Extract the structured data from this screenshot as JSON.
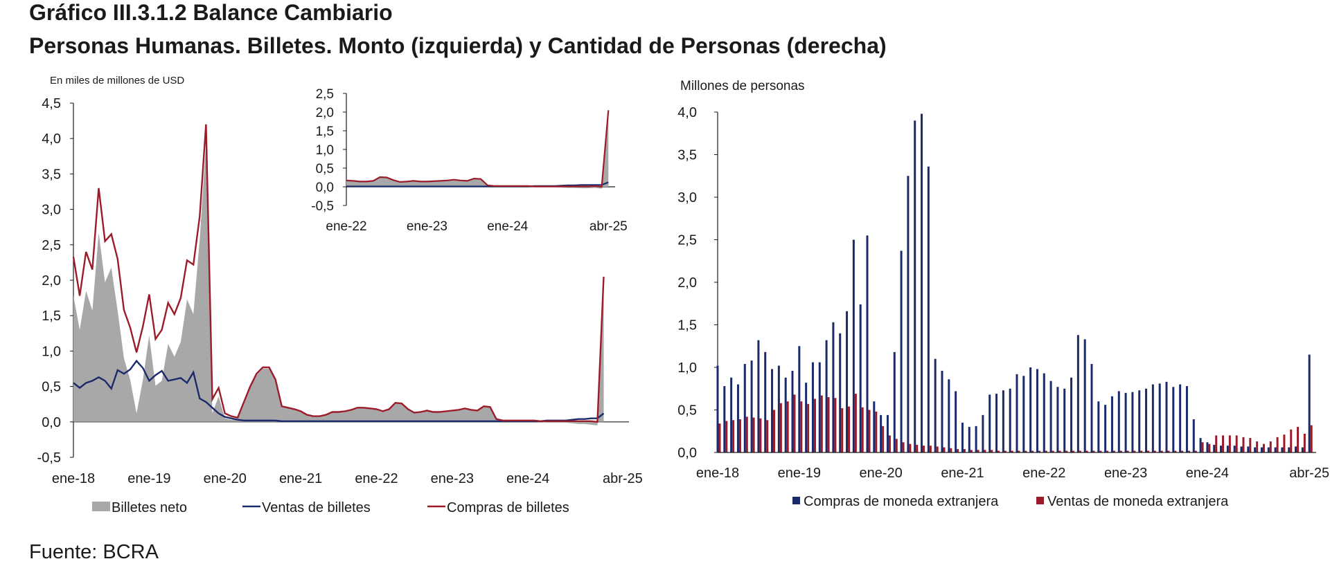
{
  "title": "Gráfico III.3.1.2 Balance Cambiario",
  "subtitle": "Personas Humanas. Billetes. Monto (izquierda) y Cantidad de Personas (derecha)",
  "source": "Fuente: BCRA",
  "colors": {
    "neto": "#a8a8a8",
    "ventas": "#1b2a6b",
    "compras": "#9b1b2a",
    "axis": "#1a1a1a"
  },
  "chart_data": [
    {
      "type": "area",
      "name": "left-main",
      "ylabel": "En miles de millones de USD",
      "ylim": [
        -0.5,
        4.5
      ],
      "yticks": [
        "-0,5",
        "0,0",
        "0,5",
        "1,0",
        "1,5",
        "2,0",
        "2,5",
        "3,0",
        "3,5",
        "4,0",
        "4,5"
      ],
      "xlim": [
        0,
        88
      ],
      "xticks": [
        {
          "x": 0,
          "label": "ene-18"
        },
        {
          "x": 12,
          "label": "ene-19"
        },
        {
          "x": 24,
          "label": "ene-20"
        },
        {
          "x": 36,
          "label": "ene-21"
        },
        {
          "x": 48,
          "label": "ene-22"
        },
        {
          "x": 60,
          "label": "ene-23"
        },
        {
          "x": 72,
          "label": "ene-24"
        },
        {
          "x": 87,
          "label": "abr-25"
        }
      ],
      "legend": [
        "Billetes neto",
        "Ventas de billetes",
        "Compras de billetes"
      ],
      "series": [
        {
          "name": "Compras de billetes",
          "values": [
            2.33,
            1.78,
            2.4,
            2.15,
            3.3,
            2.55,
            2.65,
            2.3,
            1.58,
            1.33,
            0.98,
            1.35,
            1.8,
            1.17,
            1.3,
            1.68,
            1.52,
            1.75,
            2.28,
            2.22,
            2.9,
            4.2,
            0.32,
            0.48,
            0.12,
            0.08,
            0.06,
            0.28,
            0.5,
            0.68,
            0.77,
            0.77,
            0.6,
            0.22,
            0.2,
            0.18,
            0.15,
            0.1,
            0.08,
            0.08,
            0.1,
            0.14,
            0.14,
            0.15,
            0.17,
            0.2,
            0.2,
            0.19,
            0.18,
            0.15,
            0.18,
            0.27,
            0.26,
            0.18,
            0.13,
            0.14,
            0.16,
            0.14,
            0.14,
            0.15,
            0.16,
            0.17,
            0.19,
            0.17,
            0.16,
            0.22,
            0.21,
            0.04,
            0.02,
            0.02,
            0.02,
            0.02,
            0.02,
            0.02,
            0.01,
            0.01,
            0.01,
            0.01,
            0.01,
            0.01,
            0.01,
            0.01,
            0.01,
            0.0,
            2.05
          ]
        },
        {
          "name": "Ventas de billetes",
          "values": [
            0.55,
            0.48,
            0.55,
            0.58,
            0.63,
            0.58,
            0.47,
            0.73,
            0.68,
            0.74,
            0.86,
            0.76,
            0.58,
            0.66,
            0.72,
            0.58,
            0.6,
            0.62,
            0.55,
            0.7,
            0.33,
            0.28,
            0.2,
            0.12,
            0.07,
            0.05,
            0.03,
            0.02,
            0.02,
            0.02,
            0.02,
            0.02,
            0.02,
            0.01,
            0.01,
            0.01,
            0.01,
            0.01,
            0.01,
            0.01,
            0.01,
            0.01,
            0.01,
            0.01,
            0.01,
            0.01,
            0.01,
            0.01,
            0.01,
            0.01,
            0.01,
            0.01,
            0.01,
            0.01,
            0.01,
            0.01,
            0.01,
            0.01,
            0.01,
            0.01,
            0.01,
            0.01,
            0.01,
            0.01,
            0.01,
            0.01,
            0.01,
            0.01,
            0.01,
            0.01,
            0.01,
            0.01,
            0.01,
            0.01,
            0.01,
            0.02,
            0.02,
            0.02,
            0.02,
            0.03,
            0.04,
            0.04,
            0.05,
            0.05,
            0.12
          ]
        },
        {
          "name": "Billetes neto",
          "values": [
            1.78,
            1.3,
            1.85,
            1.57,
            2.67,
            1.97,
            2.18,
            1.57,
            0.9,
            0.59,
            0.12,
            0.59,
            1.22,
            0.51,
            0.58,
            1.1,
            0.92,
            1.13,
            1.73,
            1.52,
            2.57,
            3.92,
            0.12,
            0.36,
            0.05,
            0.03,
            0.03,
            0.26,
            0.48,
            0.66,
            0.75,
            0.75,
            0.58,
            0.21,
            0.19,
            0.17,
            0.14,
            0.09,
            0.07,
            0.07,
            0.09,
            0.13,
            0.13,
            0.14,
            0.16,
            0.19,
            0.19,
            0.18,
            0.17,
            0.14,
            0.17,
            0.26,
            0.25,
            0.17,
            0.12,
            0.13,
            0.15,
            0.13,
            0.13,
            0.14,
            0.15,
            0.16,
            0.18,
            0.16,
            0.15,
            0.21,
            0.2,
            0.03,
            0.01,
            0.01,
            0.01,
            0.01,
            0.01,
            0.01,
            0.0,
            -0.01,
            -0.01,
            -0.01,
            -0.01,
            -0.02,
            -0.03,
            -0.03,
            -0.04,
            -0.05,
            1.93
          ]
        }
      ]
    },
    {
      "type": "area",
      "name": "left-inset",
      "ylim": [
        -0.5,
        2.5
      ],
      "yticks": [
        "-0,5",
        "0,0",
        "0,5",
        "1,0",
        "1,5",
        "2,0",
        "2,5"
      ],
      "xlim": [
        0,
        40
      ],
      "xticks": [
        {
          "x": 0,
          "label": "ene-22"
        },
        {
          "x": 12,
          "label": "ene-23"
        },
        {
          "x": 24,
          "label": "ene-24"
        },
        {
          "x": 39,
          "label": "abr-25"
        }
      ],
      "series": [
        {
          "name": "Compras de billetes",
          "values": [
            0.17,
            0.16,
            0.14,
            0.14,
            0.16,
            0.26,
            0.25,
            0.18,
            0.13,
            0.14,
            0.16,
            0.14,
            0.14,
            0.15,
            0.16,
            0.17,
            0.19,
            0.17,
            0.16,
            0.22,
            0.21,
            0.04,
            0.02,
            0.02,
            0.02,
            0.02,
            0.02,
            0.02,
            0.01,
            0.01,
            0.01,
            0.01,
            0.01,
            0.01,
            0.01,
            0.01,
            0.01,
            0.02,
            0.0,
            2.05
          ]
        },
        {
          "name": "Ventas de billetes",
          "values": [
            0.01,
            0.01,
            0.01,
            0.01,
            0.01,
            0.01,
            0.01,
            0.01,
            0.01,
            0.01,
            0.01,
            0.01,
            0.01,
            0.01,
            0.01,
            0.01,
            0.01,
            0.01,
            0.01,
            0.01,
            0.01,
            0.01,
            0.01,
            0.01,
            0.01,
            0.01,
            0.01,
            0.01,
            0.02,
            0.02,
            0.02,
            0.02,
            0.03,
            0.04,
            0.04,
            0.05,
            0.05,
            0.05,
            0.05,
            0.12
          ]
        },
        {
          "name": "Billetes neto",
          "values": [
            0.16,
            0.15,
            0.13,
            0.13,
            0.15,
            0.25,
            0.24,
            0.17,
            0.12,
            0.13,
            0.15,
            0.13,
            0.13,
            0.14,
            0.15,
            0.16,
            0.18,
            0.16,
            0.15,
            0.21,
            0.2,
            0.03,
            0.01,
            0.01,
            0.01,
            0.01,
            0.01,
            0.01,
            -0.01,
            -0.01,
            -0.01,
            -0.01,
            -0.02,
            -0.03,
            -0.03,
            -0.04,
            -0.04,
            -0.03,
            -0.05,
            1.93
          ]
        }
      ]
    },
    {
      "type": "bar",
      "name": "right-personas",
      "ylabel": "Millones de personas",
      "ylim": [
        0,
        4.0
      ],
      "yticks": [
        "0,0",
        "0,5",
        "1,0",
        "1,5",
        "2,0",
        "2,5",
        "3,0",
        "3,5",
        "4,0"
      ],
      "xlim": [
        0,
        88
      ],
      "xticks": [
        {
          "x": 0,
          "label": "ene-18"
        },
        {
          "x": 12,
          "label": "ene-19"
        },
        {
          "x": 24,
          "label": "ene-20"
        },
        {
          "x": 36,
          "label": "ene-21"
        },
        {
          "x": 48,
          "label": "ene-22"
        },
        {
          "x": 60,
          "label": "ene-23"
        },
        {
          "x": 72,
          "label": "ene-24"
        },
        {
          "x": 87,
          "label": "abr-25"
        }
      ],
      "legend": [
        "Compras de moneda extranjera",
        "Ventas de moneda extranjera"
      ],
      "series": [
        {
          "name": "Compras de moneda extranjera",
          "values": [
            1.02,
            0.78,
            0.88,
            0.8,
            1.04,
            1.08,
            1.32,
            1.18,
            0.98,
            1.02,
            0.88,
            0.96,
            1.25,
            0.82,
            1.06,
            1.06,
            1.32,
            1.53,
            1.4,
            1.66,
            2.5,
            1.74,
            2.55,
            0.6,
            0.44,
            0.44,
            1.18,
            2.37,
            3.25,
            3.9,
            3.98,
            3.36,
            1.1,
            0.96,
            0.86,
            0.72,
            0.35,
            0.3,
            0.31,
            0.44,
            0.68,
            0.69,
            0.73,
            0.75,
            0.92,
            0.9,
            1.0,
            0.98,
            0.93,
            0.84,
            0.77,
            0.75,
            0.88,
            1.38,
            1.33,
            1.04,
            0.6,
            0.56,
            0.66,
            0.72,
            0.7,
            0.71,
            0.73,
            0.75,
            0.8,
            0.81,
            0.83,
            0.77,
            0.8,
            0.78,
            0.39,
            0.17,
            0.12,
            0.09,
            0.08,
            0.08,
            0.08,
            0.07,
            0.07,
            0.06,
            0.06,
            0.06,
            0.06,
            0.06,
            0.06,
            0.07,
            0.06,
            1.15
          ]
        },
        {
          "name": "Ventas de moneda extranjera",
          "values": [
            0.34,
            0.37,
            0.38,
            0.39,
            0.42,
            0.41,
            0.4,
            0.38,
            0.5,
            0.58,
            0.6,
            0.68,
            0.6,
            0.57,
            0.63,
            0.67,
            0.65,
            0.64,
            0.52,
            0.54,
            0.69,
            0.53,
            0.5,
            0.48,
            0.31,
            0.2,
            0.16,
            0.12,
            0.1,
            0.09,
            0.08,
            0.08,
            0.07,
            0.06,
            0.05,
            0.04,
            0.04,
            0.03,
            0.03,
            0.03,
            0.03,
            0.02,
            0.02,
            0.02,
            0.02,
            0.02,
            0.02,
            0.02,
            0.02,
            0.02,
            0.02,
            0.02,
            0.02,
            0.02,
            0.02,
            0.02,
            0.02,
            0.02,
            0.02,
            0.02,
            0.02,
            0.02,
            0.02,
            0.02,
            0.02,
            0.02,
            0.02,
            0.02,
            0.02,
            0.02,
            0.02,
            0.12,
            0.1,
            0.2,
            0.2,
            0.2,
            0.2,
            0.18,
            0.17,
            0.13,
            0.1,
            0.13,
            0.18,
            0.21,
            0.27,
            0.3,
            0.22,
            0.32
          ]
        }
      ]
    }
  ]
}
